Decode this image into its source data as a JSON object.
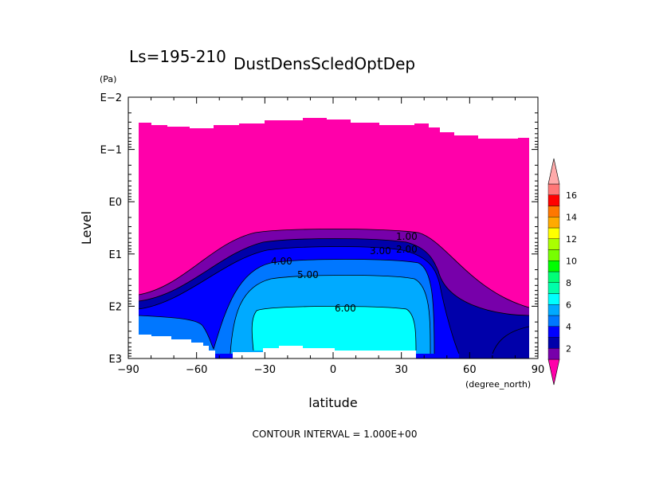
{
  "chart_data": {
    "type": "contour",
    "title": "DustDensScledOptDep",
    "subtitle": "Ls=195-210",
    "xlabel": "latitude",
    "xunit": "(degree_north)",
    "ylabel": "Level",
    "yunit": "(Pa)",
    "yscale": "log",
    "xlim": [
      -90,
      90
    ],
    "ylim_pa": [
      1000,
      0.01
    ],
    "xticks": [
      -90,
      -60,
      -30,
      0,
      30,
      60,
      90
    ],
    "xtick_labels": [
      "−90",
      "−60",
      "−30",
      "0",
      "30",
      "60",
      "90"
    ],
    "yticks_pa": [
      0.01,
      0.1,
      1,
      10,
      100,
      1000
    ],
    "ytick_labels": [
      "E−2",
      "E−1",
      "E0",
      "E1",
      "E2",
      "E3"
    ],
    "contour_interval_text": "CONTOUR INTERVAL = 1.000E+00",
    "contour_labels": [
      "1.00",
      "2.00",
      "3.00",
      "4.00",
      "5.00",
      "6.00"
    ],
    "colorbar": {
      "levels": [
        0,
        1,
        2,
        3,
        4,
        5,
        6,
        7,
        8,
        9,
        10,
        11,
        12,
        13,
        14,
        15,
        16,
        17
      ],
      "tick_labels": [
        "2",
        "4",
        "6",
        "8",
        "10",
        "12",
        "14",
        "16"
      ],
      "colors": [
        "#ff00aa",
        "#7700aa",
        "#0000aa",
        "#0000ff",
        "#0077ff",
        "#00aaff",
        "#00ffff",
        "#00ffaa",
        "#00ff77",
        "#00ff00",
        "#77ff00",
        "#aaff00",
        "#ffff00",
        "#ffaa00",
        "#ff7700",
        "#ff0000",
        "#ff7777",
        "#ffaaaa"
      ]
    },
    "regions": [
      {
        "level": "0-1",
        "color": "#ff00aa",
        "lat": [
          -85,
          85
        ],
        "top_pa": 0.04,
        "bottom_pa": 60
      },
      {
        "level": "1-2",
        "color": "#7700aa",
        "lat": [
          -85,
          85
        ],
        "top_pa": 3,
        "bottom_pa": 100
      },
      {
        "level": "2-3",
        "color": "#0000aa",
        "lat": [
          -85,
          85
        ],
        "top_pa": 4.5,
        "bottom_pa": 1000
      },
      {
        "level": "3-4",
        "color": "#0000ff",
        "lat": [
          -85,
          85
        ],
        "top_pa": 7,
        "bottom_pa": 1000
      },
      {
        "level": "4-5",
        "color": "#0077ff",
        "lat": [
          -65,
          50
        ],
        "top_pa": 12,
        "bottom_pa": 1000
      },
      {
        "level": "5-6",
        "color": "#00aaff",
        "lat": [
          -48,
          45
        ],
        "top_pa": 20,
        "bottom_pa": 1000
      },
      {
        "level": "6-7",
        "color": "#00ffff",
        "lat": [
          -38,
          37
        ],
        "top_pa": 100,
        "bottom_pa": 900
      }
    ]
  }
}
